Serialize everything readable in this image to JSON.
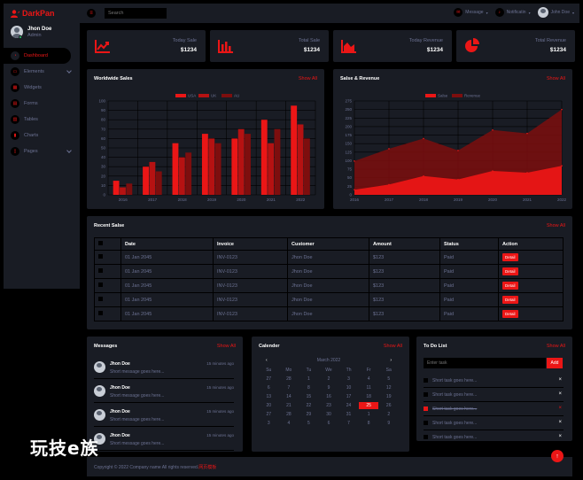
{
  "brand": {
    "name": "DarkPan"
  },
  "user": {
    "name": "Jhon Doe",
    "role": "Admin"
  },
  "sidebar": {
    "items": [
      {
        "label": "Dashboard",
        "icon": "gauge-icon"
      },
      {
        "label": "Elements",
        "icon": "laptop-icon"
      },
      {
        "label": "Widgets",
        "icon": "th-icon"
      },
      {
        "label": "Forms",
        "icon": "keyboard-icon"
      },
      {
        "label": "Tables",
        "icon": "table-icon"
      },
      {
        "label": "Charts",
        "icon": "chart-bar-icon"
      },
      {
        "label": "Pages",
        "icon": "file-icon"
      }
    ]
  },
  "topbar": {
    "search_placeholder": "Search",
    "message_label": "Message",
    "notification_label": "Notificatin",
    "user_label": "John Doe"
  },
  "stats": [
    {
      "label": "Today Sale",
      "value": "$1234",
      "icon": "chart-line-icon"
    },
    {
      "label": "Total Sale",
      "value": "$1234",
      "icon": "chart-bar-icon"
    },
    {
      "label": "Today Revenue",
      "value": "$1234",
      "icon": "chart-area-icon"
    },
    {
      "label": "Total Revenue",
      "value": "$1234",
      "icon": "chart-pie-icon"
    }
  ],
  "worldwide": {
    "title": "Worldwide Sales",
    "link": "Show All"
  },
  "revenue": {
    "title": "Salse & Revenue",
    "link": "Show All"
  },
  "chart_data": [
    {
      "type": "bar",
      "categories": [
        "2016",
        "2017",
        "2018",
        "2019",
        "2020",
        "2021",
        "2022"
      ],
      "series": [
        {
          "name": "USA",
          "values": [
            15,
            30,
            55,
            65,
            60,
            80,
            95
          ]
        },
        {
          "name": "UK",
          "values": [
            8,
            35,
            40,
            60,
            70,
            55,
            75
          ]
        },
        {
          "name": "AU",
          "values": [
            12,
            25,
            45,
            55,
            65,
            70,
            60
          ]
        }
      ],
      "ylim": [
        0,
        100
      ],
      "yticks": [
        0,
        10,
        20,
        30,
        40,
        50,
        60,
        70,
        80,
        90,
        100
      ],
      "legend": "top",
      "colors": [
        "#eb1616",
        "#b51212",
        "#7d0e0e"
      ]
    },
    {
      "type": "area",
      "x": [
        "2016",
        "2017",
        "2018",
        "2019",
        "2020",
        "2021",
        "2022"
      ],
      "series": [
        {
          "name": "Salse",
          "values": [
            15,
            30,
            55,
            45,
            70,
            65,
            85
          ]
        },
        {
          "name": "Revenue",
          "values": [
            99,
            135,
            165,
            130,
            190,
            180,
            250
          ]
        }
      ],
      "ylim": [
        0,
        275
      ],
      "yticks": [
        0,
        25,
        50,
        75,
        100,
        125,
        150,
        175,
        200,
        225,
        250,
        275
      ],
      "legend": "top",
      "colors": [
        "#eb1616",
        "#7d0e0e"
      ]
    }
  ],
  "recent_sales": {
    "title": "Recent Salse",
    "link": "Show All",
    "columns": [
      "",
      "Date",
      "Invoice",
      "Customer",
      "Amount",
      "Status",
      "Action"
    ],
    "rows": [
      {
        "date": "01 Jan 2045",
        "invoice": "INV-0123",
        "customer": "Jhon Doe",
        "amount": "$123",
        "status": "Paid",
        "action": "Detail"
      },
      {
        "date": "01 Jan 2045",
        "invoice": "INV-0123",
        "customer": "Jhon Doe",
        "amount": "$123",
        "status": "Paid",
        "action": "Detail"
      },
      {
        "date": "01 Jan 2045",
        "invoice": "INV-0123",
        "customer": "Jhon Doe",
        "amount": "$123",
        "status": "Paid",
        "action": "Detail"
      },
      {
        "date": "01 Jan 2045",
        "invoice": "INV-0123",
        "customer": "Jhon Doe",
        "amount": "$123",
        "status": "Paid",
        "action": "Detail"
      },
      {
        "date": "01 Jan 2045",
        "invoice": "INV-0123",
        "customer": "Jhon Doe",
        "amount": "$123",
        "status": "Paid",
        "action": "Detail"
      }
    ]
  },
  "messages": {
    "title": "Messages",
    "link": "Show All",
    "items": [
      {
        "name": "Jhon Doe",
        "time": "15 minutes ago",
        "text": "Short message goes here..."
      },
      {
        "name": "Jhon Doe",
        "time": "15 minutes ago",
        "text": "Short message goes here..."
      },
      {
        "name": "Jhon Doe",
        "time": "15 minutes ago",
        "text": "Short message goes here..."
      },
      {
        "name": "Jhon Doe",
        "time": "15 minutes ago",
        "text": "Short message goes here..."
      }
    ]
  },
  "calendar": {
    "title": "Calender",
    "link": "Show All",
    "month": "March 2022",
    "prev": "‹",
    "next": "›",
    "weekdays": [
      "Su",
      "Mo",
      "Tu",
      "We",
      "Th",
      "Fr",
      "Sa"
    ],
    "days": [
      "27",
      "28",
      "1",
      "2",
      "3",
      "4",
      "5",
      "6",
      "7",
      "8",
      "9",
      "10",
      "11",
      "12",
      "13",
      "14",
      "15",
      "16",
      "17",
      "18",
      "19",
      "20",
      "21",
      "22",
      "23",
      "24",
      "25",
      "26",
      "27",
      "28",
      "29",
      "30",
      "31",
      "1",
      "2",
      "3",
      "4",
      "5",
      "6",
      "7",
      "8",
      "9"
    ],
    "today": "25"
  },
  "todo": {
    "title": "To Do List",
    "link": "Show All",
    "placeholder": "Enter task",
    "add_label": "Add",
    "items": [
      {
        "text": "Short task goes here...",
        "done": false
      },
      {
        "text": "Short task goes here...",
        "done": false
      },
      {
        "text": "Short task goes here...",
        "done": true
      },
      {
        "text": "Short task goes here...",
        "done": false
      },
      {
        "text": "Short task goes here...",
        "done": false
      }
    ]
  },
  "footer": {
    "text": "Copyright © 2022 Company name All rights reserved.",
    "link": "网页模板"
  },
  "back_to_top": "↑",
  "watermark": "玩技e族"
}
